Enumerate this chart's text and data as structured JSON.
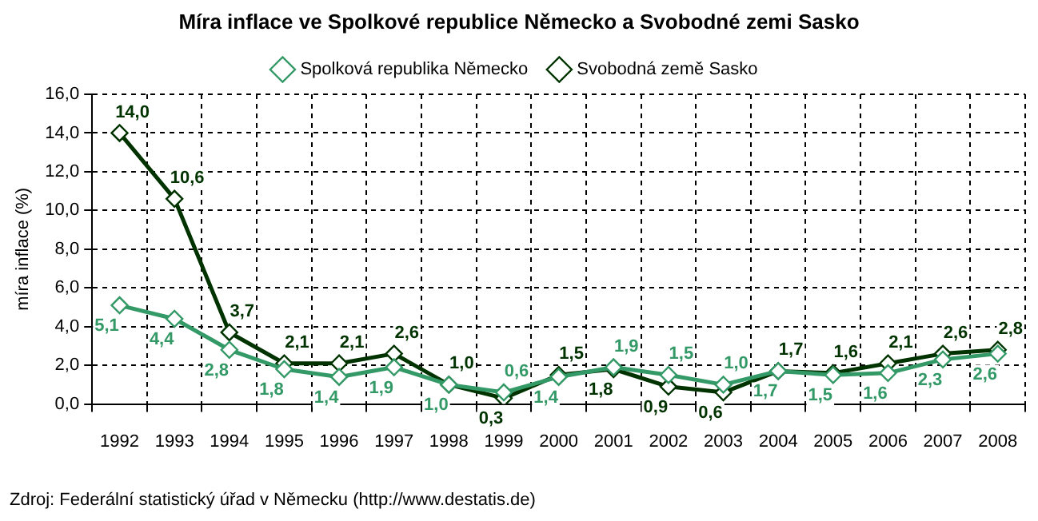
{
  "chart_data": {
    "type": "line",
    "title": "Míra inflace ve Spolkové republice Německo a Svobodné zemi Sasko",
    "ylabel": "míra inflace (%)",
    "categories": [
      "1992",
      "1993",
      "1994",
      "1995",
      "1996",
      "1997",
      "1998",
      "1999",
      "2000",
      "2001",
      "2002",
      "2003",
      "2004",
      "2005",
      "2006",
      "2007",
      "2008"
    ],
    "series": [
      {
        "name": "Spolková republika Německo",
        "color": "#339966",
        "values": [
          5.1,
          4.4,
          2.8,
          1.8,
          1.4,
          1.9,
          1.0,
          0.6,
          1.4,
          1.9,
          1.5,
          1.0,
          1.7,
          1.5,
          1.6,
          2.3,
          2.6
        ],
        "value_labels": [
          "5,1",
          "4,4",
          "2,8",
          "1,8",
          "1,4",
          "1,9",
          "1,0",
          "0,6",
          "1,4",
          "1,9",
          "1,5",
          "1,0",
          "1,7",
          "1,5",
          "1,6",
          "2,3",
          "2,6"
        ]
      },
      {
        "name": "Svobodná země Sasko",
        "color": "#003300",
        "values": [
          14.0,
          10.6,
          3.7,
          2.1,
          2.1,
          2.6,
          1.0,
          0.3,
          1.5,
          1.8,
          0.9,
          0.6,
          1.7,
          1.6,
          2.1,
          2.6,
          2.8
        ],
        "value_labels": [
          "14,0",
          "10,6",
          "3,7",
          "2,1",
          "2,1",
          "2,6",
          "1,0",
          "0,3",
          "1,5",
          "1,8",
          "0,9",
          "0,6",
          "1,7",
          "1,6",
          "2,1",
          "2,6",
          "2,8"
        ]
      }
    ],
    "ylim": [
      0,
      16
    ],
    "yticks": [
      {
        "value": 0,
        "label": "0,0"
      },
      {
        "value": 2,
        "label": "2,0"
      },
      {
        "value": 4,
        "label": "4,0"
      },
      {
        "value": 6,
        "label": "6,0"
      },
      {
        "value": 8,
        "label": "8,0"
      },
      {
        "value": 10,
        "label": "10,0"
      },
      {
        "value": 12,
        "label": "12,0"
      },
      {
        "value": 14,
        "label": "14,0"
      },
      {
        "value": 16,
        "label": "16,0"
      }
    ],
    "grid": true,
    "legend": "top",
    "marker": "diamond",
    "line_style": "solid",
    "annotations": [
      "Zdroj: Federální statistický úřad v Německu (http://www.destatis.de)"
    ]
  }
}
